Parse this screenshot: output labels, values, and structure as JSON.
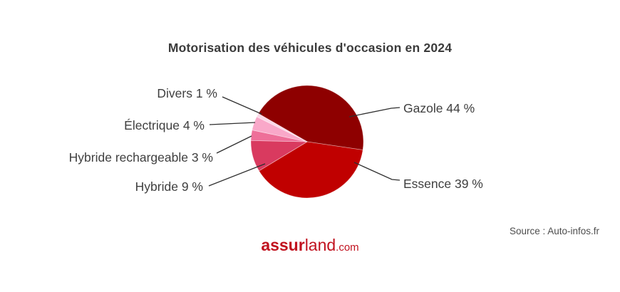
{
  "chart_data": {
    "type": "pie",
    "title": "Motorisation des véhicules d'occasion en 2024",
    "unit": "%",
    "start_angle_deg": 300,
    "direction": "clockwise",
    "legend_position": "none",
    "label_style": "callout-leader-lines",
    "leader_line_color": "#2F2F2F",
    "label_text_color": "#3F3F3F",
    "slices": [
      {
        "label": "Gazole",
        "value": 44,
        "color": "#8E0000"
      },
      {
        "label": "Essence",
        "value": 39,
        "color": "#C00000"
      },
      {
        "label": "Hybride",
        "value": 9,
        "color": "#D93A5F"
      },
      {
        "label": "Hybride rechargeable",
        "value": 3,
        "color": "#EE6F99"
      },
      {
        "label": "Électrique",
        "value": 4,
        "color": "#F9A8C9"
      },
      {
        "label": "Divers",
        "value": 1,
        "color": "#FBD7E7"
      }
    ]
  },
  "footer": {
    "source": "Source : Auto-infos.fr",
    "logo": {
      "bold": "assur",
      "regular": "land",
      "tld": ".com",
      "color": "#C1121F"
    }
  }
}
